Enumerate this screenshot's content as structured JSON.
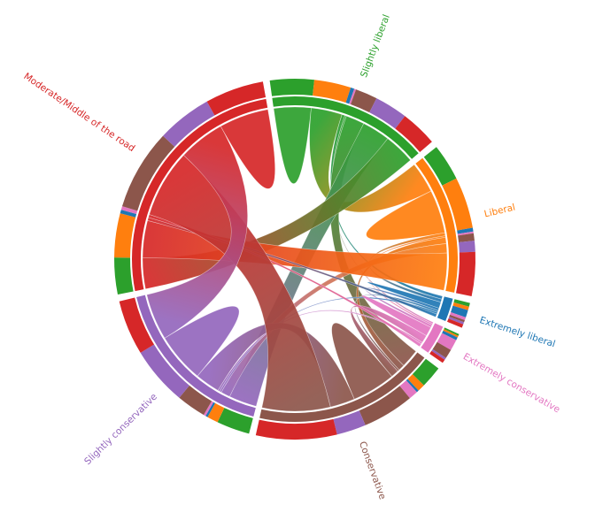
{
  "chart_data": {
    "type": "chord",
    "title": "",
    "groups": [
      {
        "name": "Slightly liberal",
        "color": "#2ca02c"
      },
      {
        "name": "Liberal",
        "color": "#ff7f0e"
      },
      {
        "name": "Extremely liberal",
        "color": "#1f77b4"
      },
      {
        "name": "Extremely conservative",
        "color": "#e377c2"
      },
      {
        "name": "Conservative",
        "color": "#8c564b"
      },
      {
        "name": "Slightly conservative",
        "color": "#9467bd"
      },
      {
        "name": "Moderate/Middle of the road",
        "color": "#d62728"
      }
    ],
    "matrix": [
      [
        12,
        10,
        1,
        0.5,
        6,
        9,
        10
      ],
      [
        10,
        14,
        1,
        0.5,
        2,
        3,
        12
      ],
      [
        1,
        1,
        2,
        0.8,
        0.6,
        0.6,
        1
      ],
      [
        0.5,
        0.5,
        0.8,
        3,
        2.5,
        0.6,
        1
      ],
      [
        6,
        2,
        0.6,
        2.5,
        14,
        8,
        22
      ],
      [
        9,
        3,
        0.6,
        0.6,
        8,
        16,
        15
      ],
      [
        10,
        12,
        1,
        1,
        22,
        15,
        16
      ]
    ]
  }
}
